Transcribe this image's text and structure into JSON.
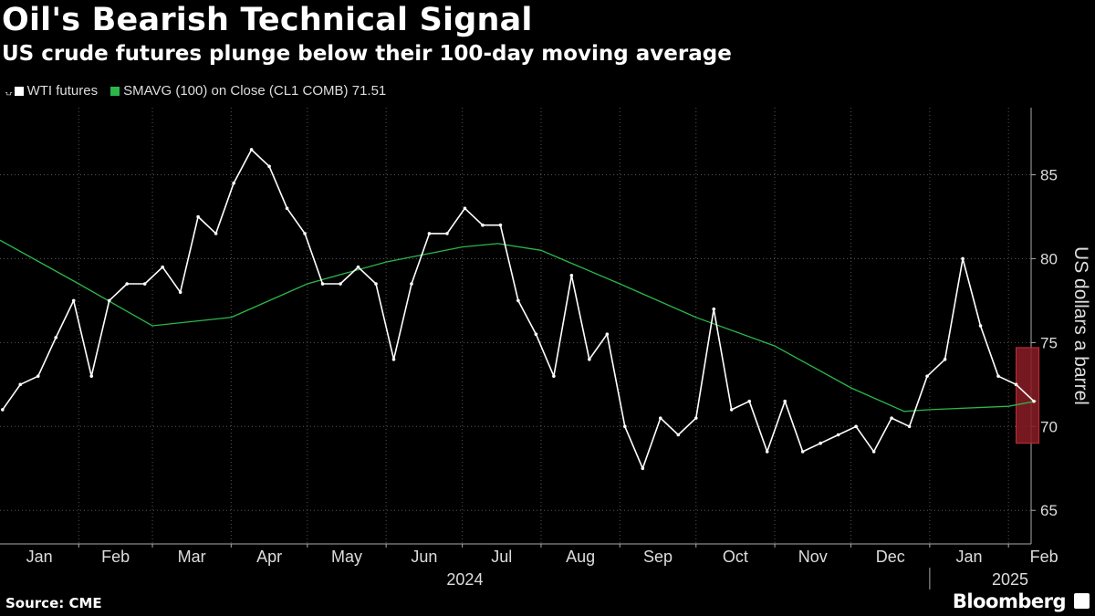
{
  "header": {
    "title": "Oil's Bearish Technical Signal",
    "subtitle": "US crude futures plunge below their 100-day moving average"
  },
  "legend": {
    "series1": "WTI futures",
    "series2": "SMAVG (100)  on Close (CL1 COMB) 71.51"
  },
  "footer": {
    "source": "Source: CME",
    "brand": "Bloomberg"
  },
  "colors": {
    "background": "#000000",
    "price": "#ffffff",
    "sma": "#2bb74a",
    "highlight": "#8b1c24",
    "grid": "#555555"
  },
  "chart_data": {
    "type": "line",
    "ylabel": "US dollars a barrel",
    "ylim": [
      63,
      89
    ],
    "yticks": [
      65,
      70,
      75,
      80,
      85
    ],
    "months": [
      "Jan",
      "Feb",
      "Mar",
      "Apr",
      "May",
      "Jun",
      "Jul",
      "Aug",
      "Sep",
      "Oct",
      "Nov",
      "Dec",
      "Jan",
      "Feb"
    ],
    "years": [
      "2024",
      "2025"
    ],
    "grid": true,
    "highlight_box": {
      "x_start": "2025-02-04",
      "x_end": "2025-02-13",
      "y_low": 69.0,
      "y_high": 74.7
    },
    "series": [
      {
        "name": "WTI futures",
        "dates": [
          "2024-01-02",
          "2024-01-09",
          "2024-01-16",
          "2024-01-23",
          "2024-01-30",
          "2024-02-06",
          "2024-02-13",
          "2024-02-20",
          "2024-02-27",
          "2024-03-05",
          "2024-03-12",
          "2024-03-19",
          "2024-03-26",
          "2024-04-02",
          "2024-04-09",
          "2024-04-16",
          "2024-04-23",
          "2024-04-30",
          "2024-05-07",
          "2024-05-14",
          "2024-05-21",
          "2024-05-28",
          "2024-06-04",
          "2024-06-11",
          "2024-06-18",
          "2024-06-25",
          "2024-07-02",
          "2024-07-09",
          "2024-07-16",
          "2024-07-23",
          "2024-07-30",
          "2024-08-06",
          "2024-08-13",
          "2024-08-20",
          "2024-08-27",
          "2024-09-03",
          "2024-09-10",
          "2024-09-17",
          "2024-09-24",
          "2024-10-01",
          "2024-10-08",
          "2024-10-15",
          "2024-10-22",
          "2024-10-29",
          "2024-11-05",
          "2024-11-12",
          "2024-11-19",
          "2024-11-26",
          "2024-12-03",
          "2024-12-10",
          "2024-12-17",
          "2024-12-24",
          "2024-12-31",
          "2025-01-07",
          "2025-01-14",
          "2025-01-21",
          "2025-01-28",
          "2025-02-04",
          "2025-02-11"
        ],
        "values": [
          71.0,
          72.5,
          73.0,
          75.3,
          77.5,
          73.0,
          77.5,
          78.5,
          78.5,
          79.5,
          78.0,
          82.5,
          81.5,
          84.5,
          86.5,
          85.5,
          83.0,
          81.5,
          78.5,
          78.5,
          79.5,
          78.5,
          74.0,
          78.5,
          81.5,
          81.5,
          83.0,
          82.0,
          82.0,
          77.5,
          75.5,
          73.0,
          79.0,
          74.0,
          75.5,
          70.0,
          67.5,
          70.5,
          69.5,
          70.5,
          77.0,
          71.0,
          71.5,
          68.5,
          71.5,
          68.5,
          69.0,
          69.5,
          70.0,
          68.5,
          70.5,
          70.0,
          73.0,
          74.0,
          80.0,
          76.0,
          73.0,
          72.5,
          71.5
        ]
      },
      {
        "name": "SMAVG (100)",
        "dates": [
          "2024-01-01",
          "2024-02-01",
          "2024-03-01",
          "2024-04-01",
          "2024-05-01",
          "2024-06-01",
          "2024-07-01",
          "2024-07-15",
          "2024-08-01",
          "2024-09-01",
          "2024-10-01",
          "2024-11-01",
          "2024-12-01",
          "2024-12-22",
          "2025-01-01",
          "2025-02-01",
          "2025-02-12"
        ],
        "values": [
          81.1,
          78.5,
          76.0,
          76.5,
          78.5,
          79.8,
          80.7,
          80.9,
          80.5,
          78.5,
          76.5,
          74.8,
          72.3,
          70.9,
          71.0,
          71.2,
          71.51
        ]
      }
    ]
  }
}
